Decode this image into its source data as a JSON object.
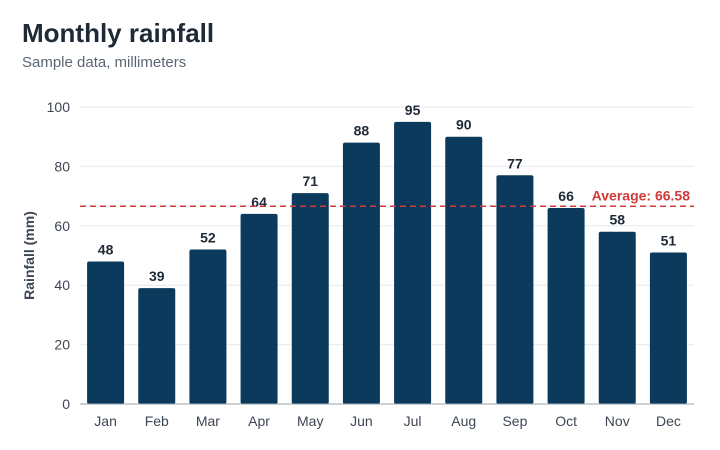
{
  "chart_data": {
    "type": "bar",
    "title": "Monthly rainfall",
    "subtitle": "Sample data, millimeters",
    "xlabel": "",
    "ylabel": "Rainfall (mm)",
    "categories": [
      "Jan",
      "Feb",
      "Mar",
      "Apr",
      "May",
      "Jun",
      "Jul",
      "Aug",
      "Sep",
      "Oct",
      "Nov",
      "Dec"
    ],
    "values": [
      48,
      39,
      52,
      64,
      71,
      88,
      95,
      90,
      77,
      66,
      58,
      51
    ],
    "ylim": [
      0,
      100
    ],
    "yticks": [
      0,
      20,
      40,
      60,
      80,
      100
    ],
    "grid": true,
    "bar_color": "#0b3a5c",
    "reference_line": {
      "value": 66.58,
      "label": "Average: 66.58",
      "color": "#d23a3a",
      "style": "dashed"
    }
  }
}
